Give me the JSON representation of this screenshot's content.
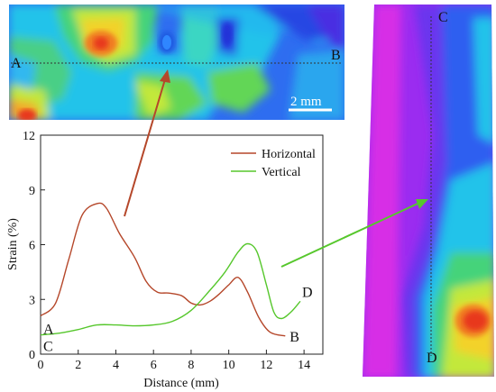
{
  "top_map": {
    "line_start": "A",
    "line_end": "B",
    "scale_bar_label": "2 mm"
  },
  "right_map": {
    "line_start": "C",
    "line_end": "D"
  },
  "chart_data": {
    "type": "line",
    "xlabel": "Distance (mm)",
    "ylabel": "Strain (%)",
    "xlim": [
      0,
      15
    ],
    "ylim": [
      0,
      12
    ],
    "xticks": [
      "0",
      "2",
      "4",
      "6",
      "8",
      "10",
      "12",
      "14"
    ],
    "yticks": [
      "0",
      "3",
      "6",
      "9",
      "12"
    ],
    "legend_position": "top-right",
    "series": [
      {
        "name": "Horizontal",
        "color": "#b5472a",
        "start_label": "A",
        "end_label": "B",
        "x": [
          0,
          0.8,
          1.5,
          2.2,
          3.0,
          3.5,
          4.2,
          5.0,
          5.6,
          6.2,
          6.8,
          7.5,
          8.0,
          8.5,
          9.0,
          9.5,
          10.0,
          10.5,
          11.0,
          11.6,
          12.2,
          13.0
        ],
        "y": [
          2.1,
          2.8,
          5.2,
          7.6,
          8.25,
          8.0,
          6.6,
          5.3,
          4.0,
          3.4,
          3.35,
          3.2,
          2.8,
          2.7,
          2.9,
          3.3,
          3.8,
          4.2,
          3.4,
          2.0,
          1.2,
          1.0
        ]
      },
      {
        "name": "Vertical",
        "color": "#56c72c",
        "start_label": "C",
        "end_label": "D",
        "x": [
          0,
          1.0,
          2.0,
          3.0,
          4.0,
          5.0,
          6.0,
          7.0,
          8.0,
          9.0,
          9.8,
          10.5,
          11.0,
          11.5,
          12.0,
          12.4,
          12.8,
          13.3,
          13.8
        ],
        "y": [
          1.05,
          1.15,
          1.35,
          1.6,
          1.6,
          1.55,
          1.6,
          1.8,
          2.4,
          3.5,
          4.5,
          5.6,
          6.05,
          5.6,
          3.8,
          2.3,
          1.95,
          2.3,
          2.9
        ]
      }
    ]
  }
}
